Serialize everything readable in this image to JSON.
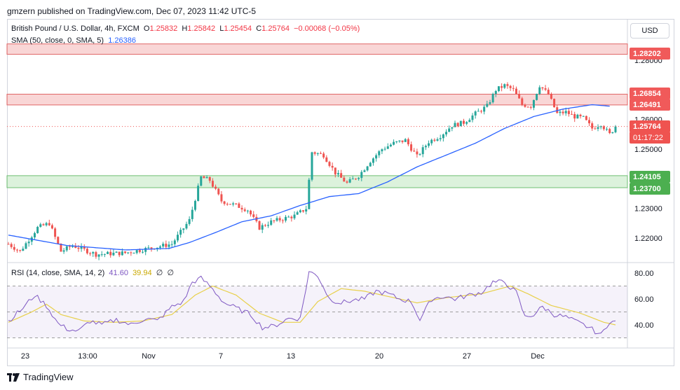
{
  "header": {
    "published": "gmzern published on TradingView.com, Dec 07, 2023 11:42 UTC-5"
  },
  "legend": {
    "symbol": "British Pound / U.S. Dollar, 4h, FXCM",
    "o_label": "O",
    "o": "1.25832",
    "h_label": "H",
    "h": "1.25842",
    "l_label": "L",
    "l": "1.25454",
    "c_label": "C",
    "c": "1.25764",
    "change": "−0.00068 (−0.05%)",
    "sma_label": "SMA (50, close, 0, SMA, 5)",
    "sma_value": "1.26386",
    "rsi_label": "RSI (14, close, SMA, 14, 2)",
    "rsi_value": "41.60",
    "rsi_ma_value": "39.94",
    "rsi_extra1": "∅",
    "rsi_extra2": "∅"
  },
  "currency_button": "USD",
  "price_tags": {
    "r1": "1.28202",
    "r2": "1.26854",
    "r3": "1.26491",
    "last": "1.25764",
    "countdown": "01:17:22",
    "s1": "1.24105",
    "s2": "1.23700"
  },
  "footer": {
    "brand": "TradingView"
  },
  "colors": {
    "up": "#26a69a",
    "down": "#ef5350",
    "sma": "#2962ff",
    "rsi": "#7e57c2",
    "rsi_ma": "#e8d04a",
    "resistance_zone": "#f7c4c4",
    "support_zone": "#cdeccd"
  },
  "chart_data": [
    {
      "type": "candlestick",
      "title": "British Pound / U.S. Dollar, 4h, FXCM",
      "y_ticks": [
        "1.22000",
        "1.23000",
        "1.25000",
        "1.26000",
        "1.28000"
      ],
      "x_ticks": [
        "23",
        "13:00",
        "Nov",
        "7",
        "13",
        "20",
        "27",
        "Dec"
      ],
      "ylim": [
        1.2135,
        1.2885
      ],
      "zones": [
        {
          "name": "resistance",
          "from": 1.282,
          "to": 1.2855
        },
        {
          "name": "resistance",
          "from": 1.26491,
          "to": 1.26854
        },
        {
          "name": "support",
          "from": 1.237,
          "to": 1.24105
        }
      ],
      "last_price": 1.25764,
      "close_anchors": [
        [
          0,
          1.218
        ],
        [
          4,
          1.2155
        ],
        [
          10,
          1.2235
        ],
        [
          14,
          1.225
        ],
        [
          18,
          1.2155
        ],
        [
          22,
          1.2175
        ],
        [
          30,
          1.2145
        ],
        [
          40,
          1.215
        ],
        [
          48,
          1.2165
        ],
        [
          56,
          1.218
        ],
        [
          62,
          1.226
        ],
        [
          66,
          1.2405
        ],
        [
          69,
          1.2395
        ],
        [
          73,
          1.2325
        ],
        [
          78,
          1.231
        ],
        [
          82,
          1.2295
        ],
        [
          86,
          1.2235
        ],
        [
          90,
          1.2255
        ],
        [
          98,
          1.2275
        ],
        [
          102,
          1.23
        ],
        [
          104,
          1.249
        ],
        [
          108,
          1.248
        ],
        [
          112,
          1.242
        ],
        [
          116,
          1.2385
        ],
        [
          120,
          1.241
        ],
        [
          124,
          1.246
        ],
        [
          128,
          1.25
        ],
        [
          132,
          1.252
        ],
        [
          136,
          1.253
        ],
        [
          140,
          1.2475
        ],
        [
          144,
          1.2525
        ],
        [
          148,
          1.2545
        ],
        [
          152,
          1.258
        ],
        [
          156,
          1.259
        ],
        [
          160,
          1.262
        ],
        [
          164,
          1.2645
        ],
        [
          167,
          1.27
        ],
        [
          170,
          1.2715
        ],
        [
          173,
          1.27
        ],
        [
          176,
          1.265
        ],
        [
          179,
          1.2645
        ],
        [
          182,
          1.2715
        ],
        [
          185,
          1.2685
        ],
        [
          188,
          1.262
        ],
        [
          191,
          1.2625
        ],
        [
          194,
          1.261
        ],
        [
          197,
          1.2605
        ],
        [
          200,
          1.257
        ],
        [
          203,
          1.2585
        ],
        [
          206,
          1.255
        ],
        [
          208,
          1.2576
        ]
      ],
      "sma_anchors": [
        [
          0,
          1.221
        ],
        [
          20,
          1.2175
        ],
        [
          40,
          1.216
        ],
        [
          55,
          1.2165
        ],
        [
          62,
          1.2185
        ],
        [
          70,
          1.2215
        ],
        [
          80,
          1.2255
        ],
        [
          90,
          1.2275
        ],
        [
          100,
          1.231
        ],
        [
          110,
          1.234
        ],
        [
          120,
          1.235
        ],
        [
          130,
          1.239
        ],
        [
          140,
          1.244
        ],
        [
          150,
          1.248
        ],
        [
          160,
          1.252
        ],
        [
          170,
          1.257
        ],
        [
          180,
          1.261
        ],
        [
          190,
          1.2635
        ],
        [
          200,
          1.265
        ],
        [
          206,
          1.2645
        ]
      ]
    },
    {
      "type": "line",
      "title": "RSI (14, close, SMA, 14, 2)",
      "y_ticks": [
        "40.00",
        "60.00",
        "80.00"
      ],
      "ylim": [
        29,
        84
      ],
      "levels": [
        70,
        50,
        30
      ],
      "series": [
        {
          "name": "RSI",
          "anchors": [
            [
              0,
              43
            ],
            [
              5,
              53
            ],
            [
              9,
              63
            ],
            [
              13,
              55
            ],
            [
              17,
              41
            ],
            [
              20,
              37
            ],
            [
              24,
              35
            ],
            [
              28,
              43
            ],
            [
              32,
              40
            ],
            [
              37,
              44
            ],
            [
              42,
              40
            ],
            [
              47,
              45
            ],
            [
              51,
              43
            ],
            [
              56,
              54
            ],
            [
              60,
              58
            ],
            [
              63,
              73
            ],
            [
              66,
              76
            ],
            [
              69,
              70
            ],
            [
              74,
              57
            ],
            [
              79,
              52
            ],
            [
              83,
              48
            ],
            [
              87,
              38
            ],
            [
              91,
              39
            ],
            [
              96,
              45
            ],
            [
              100,
              45
            ],
            [
              103,
              81
            ],
            [
              106,
              78
            ],
            [
              110,
              60
            ],
            [
              114,
              57
            ],
            [
              118,
              59
            ],
            [
              122,
              60
            ],
            [
              126,
              66
            ],
            [
              130,
              64
            ],
            [
              134,
              60
            ],
            [
              138,
              58
            ],
            [
              141,
              44
            ],
            [
              145,
              60
            ],
            [
              149,
              62
            ],
            [
              153,
              60
            ],
            [
              158,
              63
            ],
            [
              162,
              65
            ],
            [
              166,
              73
            ],
            [
              170,
              73
            ],
            [
              174,
              65
            ],
            [
              177,
              46
            ],
            [
              180,
              48
            ],
            [
              183,
              54
            ],
            [
              187,
              48
            ],
            [
              191,
              46
            ],
            [
              195,
              42
            ],
            [
              199,
              38
            ],
            [
              203,
              32
            ],
            [
              206,
              43
            ],
            [
              208,
              42
            ]
          ]
        },
        {
          "name": "RSI MA",
          "anchors": [
            [
              0,
              42
            ],
            [
              8,
              50
            ],
            [
              13,
              56
            ],
            [
              18,
              48
            ],
            [
              26,
              43
            ],
            [
              36,
              42
            ],
            [
              46,
              43
            ],
            [
              56,
              48
            ],
            [
              64,
              63
            ],
            [
              70,
              70
            ],
            [
              78,
              63
            ],
            [
              86,
              49
            ],
            [
              94,
              42
            ],
            [
              100,
              42
            ],
            [
              106,
              58
            ],
            [
              114,
              68
            ],
            [
              122,
              66
            ],
            [
              132,
              61
            ],
            [
              140,
              57
            ],
            [
              150,
              61
            ],
            [
              162,
              64
            ],
            [
              172,
              70
            ],
            [
              178,
              64
            ],
            [
              186,
              55
            ],
            [
              196,
              49
            ],
            [
              204,
              42
            ],
            [
              208,
              40
            ]
          ]
        }
      ]
    }
  ]
}
